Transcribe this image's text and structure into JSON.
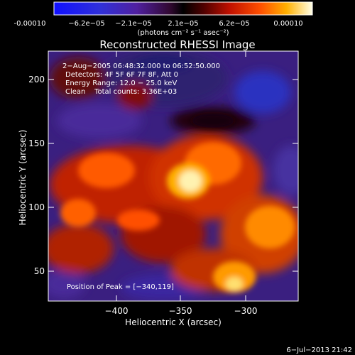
{
  "colorbar": {
    "ticks": [
      "-0.00010",
      "−6.2e−05",
      "−2.1e−05",
      "2.1e−05",
      "6.2e−05",
      "0.00010"
    ],
    "units": "(photons cm⁻² s⁻¹ asec⁻²)"
  },
  "title": "Reconstructed RHESSI Image",
  "info": {
    "time_range": "2−Aug−2005 06:48:32.000 to 06:52:50.000",
    "detectors": "Detectors: 4F 5F 6F 7F 8F, Att 0",
    "energy": "Energy Range: 12.0 − 25.0 keV",
    "method": "Clean    Total counts: 3.36E+03"
  },
  "peak": "Position of Peak = [−340,119]",
  "axes": {
    "xlabel": "Heliocentric X (arcsec)",
    "ylabel": "Heliocentric Y (arcsec)",
    "xticks": [
      "−400",
      "−350",
      "−300"
    ],
    "yticks": [
      "200",
      "150",
      "100",
      "50"
    ]
  },
  "timestamp": "6−Jul−2013 21:42",
  "colors": {
    "background": "#000000",
    "colorbar_low": "#1a1aff",
    "colorbar_high": "#ffffe0"
  }
}
